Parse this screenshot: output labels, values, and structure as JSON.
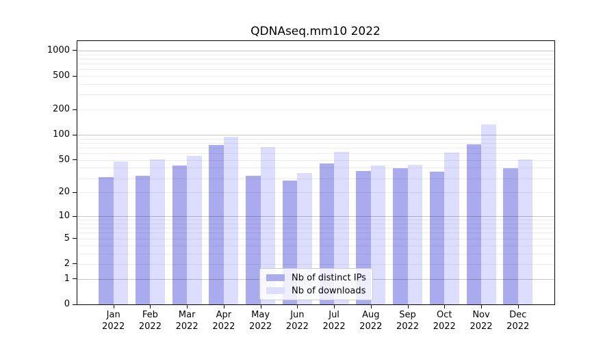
{
  "chart_data": {
    "type": "bar",
    "title": "QDNAseq.mm10 2022",
    "categories": [
      "Jan",
      "Feb",
      "Mar",
      "Apr",
      "May",
      "Jun",
      "Jul",
      "Aug",
      "Sep",
      "Oct",
      "Nov",
      "Dec"
    ],
    "category_year": "2022",
    "series": [
      {
        "name": "Nb of distinct IPs",
        "color": "#aaaaee",
        "values": [
          31,
          32,
          43,
          75,
          32,
          28,
          45,
          37,
          40,
          36,
          77,
          40
        ]
      },
      {
        "name": "Nb of downloads",
        "color": "#ddddff",
        "values": [
          48,
          51,
          56,
          95,
          72,
          35,
          62,
          43,
          44,
          61,
          133,
          51
        ]
      }
    ],
    "yscale": "log1p",
    "yticks": [
      0,
      1,
      2,
      5,
      10,
      20,
      50,
      100,
      200,
      500,
      1000
    ],
    "ylim": [
      0,
      1294
    ],
    "grid": "both",
    "legend_position": "lower-center",
    "major_grid_values": [
      1,
      10,
      100,
      1000
    ]
  }
}
